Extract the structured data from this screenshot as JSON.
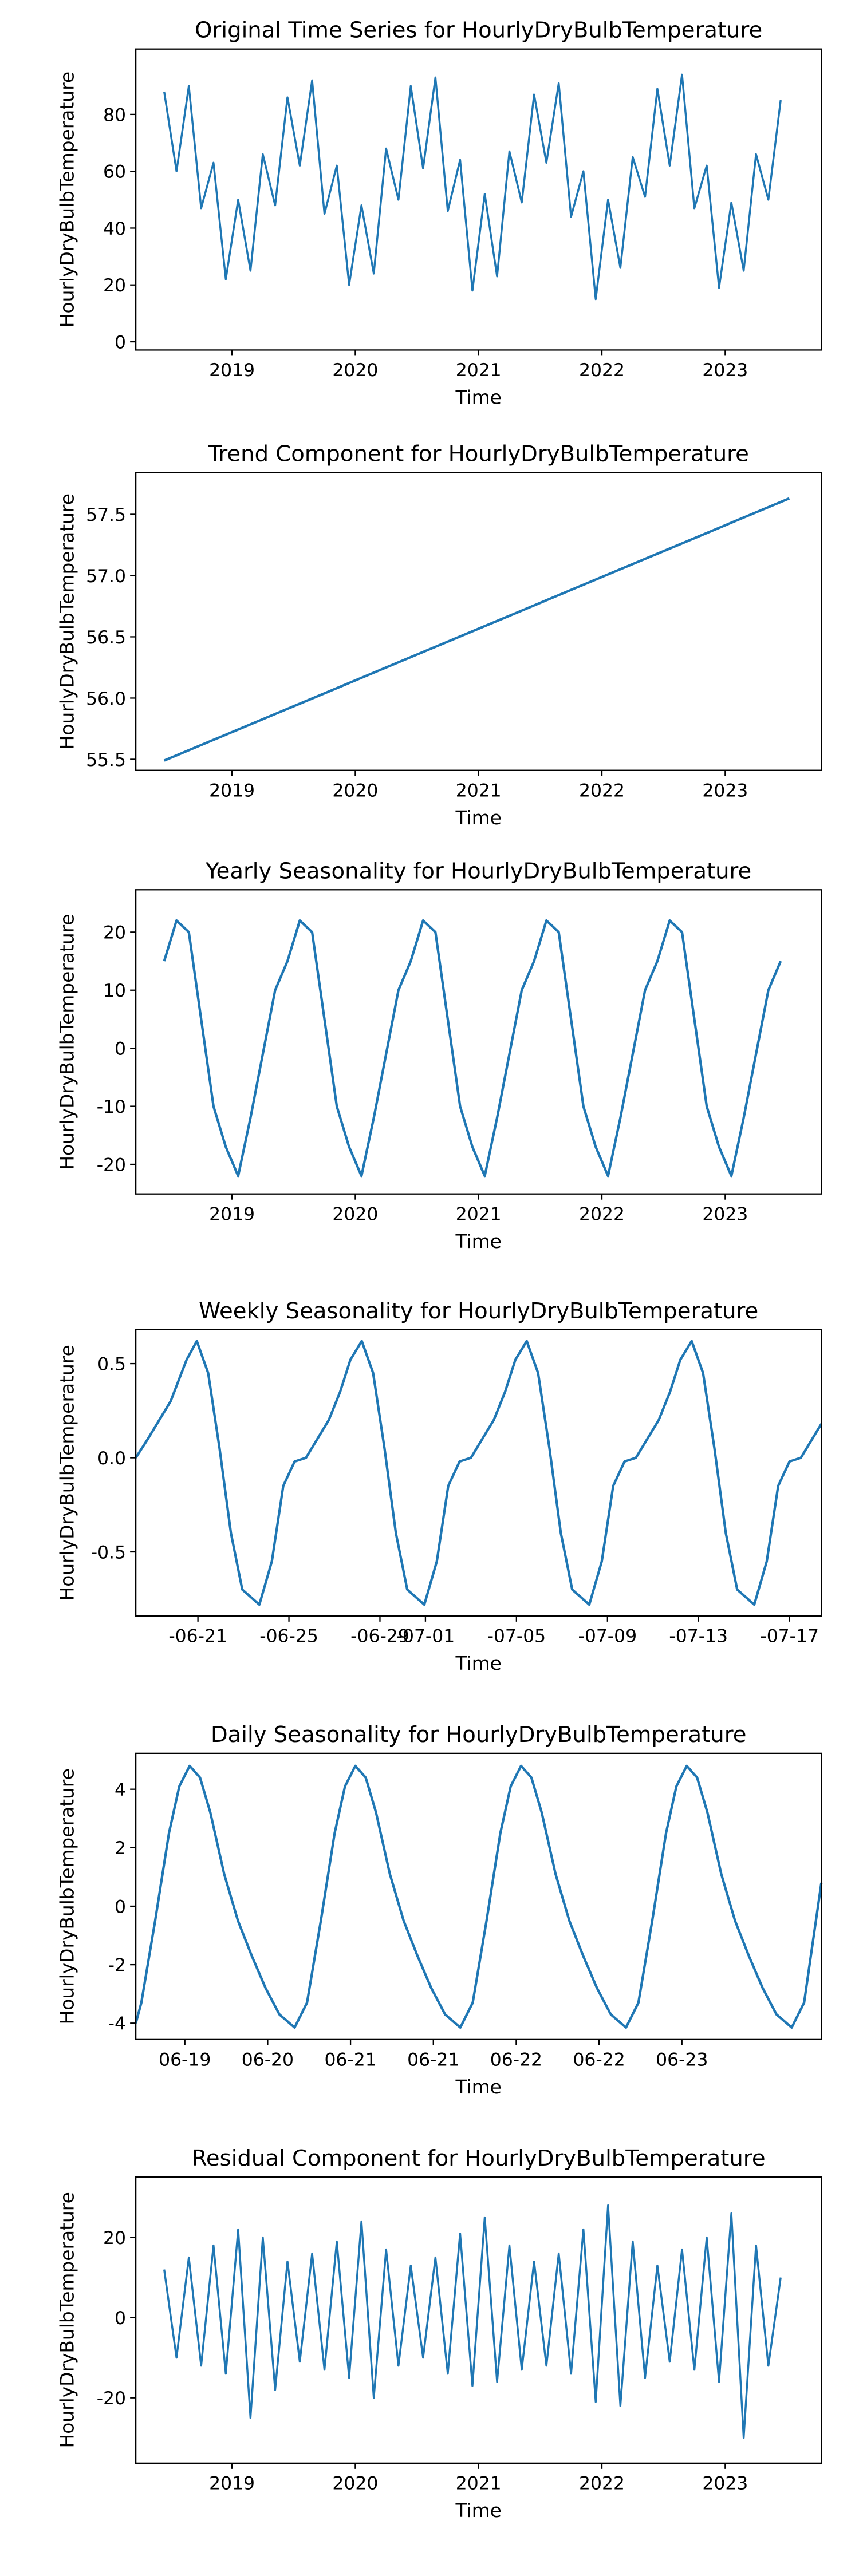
{
  "chart_data": [
    {
      "type": "line",
      "title": "Original Time Series for HourlyDryBulbTemperature",
      "xlabel": "Time",
      "ylabel": "HourlyDryBulbTemperature",
      "color": "#1f77b4",
      "x": [
        2018.45,
        2018.55,
        2018.65,
        2018.75,
        2018.85,
        2018.95,
        2019.05,
        2019.15,
        2019.25,
        2019.35,
        2019.45,
        2019.55,
        2019.65,
        2019.75,
        2019.85,
        2019.95,
        2020.05,
        2020.15,
        2020.25,
        2020.35,
        2020.45,
        2020.55,
        2020.65,
        2020.75,
        2020.85,
        2020.95,
        2021.05,
        2021.15,
        2021.25,
        2021.35,
        2021.45,
        2021.55,
        2021.65,
        2021.75,
        2021.85,
        2021.95,
        2022.05,
        2022.15,
        2022.25,
        2022.35,
        2022.45,
        2022.55,
        2022.65,
        2022.75,
        2022.85,
        2022.95,
        2023.05,
        2023.15,
        2023.25,
        2023.35,
        2023.45
      ],
      "values": [
        88,
        60,
        90,
        47,
        63,
        22,
        50,
        25,
        66,
        48,
        86,
        62,
        92,
        45,
        62,
        20,
        48,
        24,
        68,
        50,
        90,
        61,
        93,
        46,
        64,
        18,
        52,
        23,
        67,
        49,
        87,
        63,
        91,
        44,
        60,
        15,
        50,
        26,
        65,
        51,
        89,
        62,
        94,
        47,
        62,
        19,
        49,
        25,
        66,
        50,
        85
      ],
      "xlim": [
        2018.22,
        2023.78
      ],
      "xticks": [
        2019,
        2020,
        2021,
        2022,
        2023
      ],
      "ylim": [
        -2.9,
        103
      ],
      "yticks": [
        0,
        20,
        40,
        60,
        80
      ],
      "noisy": true
    },
    {
      "type": "line",
      "title": "Trend Component for HourlyDryBulbTemperature",
      "xlabel": "Time",
      "ylabel": "HourlyDryBulbTemperature",
      "color": "#1f77b4",
      "x": [
        2018.45,
        2023.52
      ],
      "values": [
        55.49,
        57.63
      ],
      "xlim": [
        2018.22,
        2023.78
      ],
      "xticks": [
        2019,
        2020,
        2021,
        2022,
        2023
      ],
      "ylim": [
        55.41,
        57.84
      ],
      "yticks": [
        55.5,
        {
          "value": 56,
          "label": "56.0"
        },
        56.5,
        {
          "value": 57,
          "label": "57.0"
        },
        57.5
      ]
    },
    {
      "type": "line",
      "title": "Yearly Seasonality for HourlyDryBulbTemperature",
      "xlabel": "Time",
      "ylabel": "HourlyDryBulbTemperature",
      "color": "#1f77b4",
      "x": [
        2018.45,
        2018.55,
        2018.65,
        2018.75,
        2018.85,
        2018.95,
        2019.05,
        2019.15,
        2019.25,
        2019.35,
        2019.45,
        2019.55,
        2019.65,
        2019.75,
        2019.85,
        2019.95,
        2020.05,
        2020.15,
        2020.25,
        2020.35,
        2020.45,
        2020.55,
        2020.65,
        2020.75,
        2020.85,
        2020.95,
        2021.05,
        2021.15,
        2021.25,
        2021.35,
        2021.45,
        2021.55,
        2021.65,
        2021.75,
        2021.85,
        2021.95,
        2022.05,
        2022.15,
        2022.25,
        2022.35,
        2022.45,
        2022.55,
        2022.65,
        2022.75,
        2022.85,
        2022.95,
        2023.05,
        2023.15,
        2023.25,
        2023.35,
        2023.45
      ],
      "values": [
        15,
        22,
        20,
        5,
        -10,
        -17,
        -22,
        -12,
        -1,
        10,
        15,
        22,
        20,
        5,
        -10,
        -17,
        -22,
        -12,
        -1,
        10,
        15,
        22,
        20,
        5,
        -10,
        -17,
        -22,
        -12,
        -1,
        10,
        15,
        22,
        20,
        5,
        -10,
        -17,
        -22,
        -12,
        -1,
        10,
        15,
        22,
        20,
        5,
        -10,
        -17,
        -22,
        -12,
        -1,
        10,
        15
      ],
      "xlim": [
        2018.22,
        2023.78
      ],
      "xticks": [
        2019,
        2020,
        2021,
        2022,
        2023
      ],
      "ylim": [
        -25.1,
        27.3
      ],
      "yticks": [
        -20,
        -10,
        0,
        10,
        20
      ]
    },
    {
      "type": "line",
      "title": "Weekly Seasonality for HourlyDryBulbTemperature",
      "xlabel": "Time",
      "ylabel": "HourlyDryBulbTemperature",
      "color": "#1f77b4",
      "x": [
        -2.73,
        -2.2,
        -1.7,
        -1.2,
        -0.5,
        -0.05,
        0.45,
        0.95,
        1.45,
        1.95,
        2.7,
        3.25,
        3.75,
        4.25,
        4.75,
        5.25,
        5.75,
        6.25,
        6.7,
        7.2,
        7.7,
        8.2,
        8.7,
        9.2,
        9.95,
        10.5,
        11,
        11.5,
        12,
        12.5,
        13,
        13.5,
        13.95,
        14.45,
        14.95,
        15.45,
        15.95,
        16.45,
        17.2,
        17.75,
        18.25,
        18.75,
        19.25,
        19.75,
        20.25,
        20.75,
        21.2,
        21.7,
        22.2,
        22.7,
        23.2,
        23.7,
        24.45,
        25,
        25.5,
        26,
        26.5,
        27,
        27.4
      ],
      "values": [
        0,
        0.1,
        0.2,
        0.3,
        0.52,
        0.62,
        0.45,
        0.05,
        -0.4,
        -0.7,
        -0.78,
        -0.55,
        -0.15,
        -0.02,
        0,
        0.1,
        0.2,
        0.35,
        0.52,
        0.62,
        0.45,
        0.05,
        -0.4,
        -0.7,
        -0.78,
        -0.55,
        -0.15,
        -0.02,
        0,
        0.1,
        0.2,
        0.35,
        0.52,
        0.62,
        0.45,
        0.05,
        -0.4,
        -0.7,
        -0.78,
        -0.55,
        -0.15,
        -0.02,
        0,
        0.1,
        0.2,
        0.35,
        0.52,
        0.62,
        0.45,
        0.05,
        -0.4,
        -0.7,
        -0.78,
        -0.55,
        -0.15,
        -0.02,
        0,
        0.1,
        0.18
      ],
      "xlim": [
        -2.73,
        27.4
      ],
      "xticks": [
        {
          "value": 0,
          "label": "-06-21"
        },
        {
          "value": 4,
          "label": "-06-25"
        },
        {
          "value": 8,
          "label": "-06-29"
        },
        {
          "value": 10,
          "label": "-07-01"
        },
        {
          "value": 14,
          "label": "-07-05"
        },
        {
          "value": 18,
          "label": "-07-09"
        },
        {
          "value": 22,
          "label": "-07-13"
        },
        {
          "value": 26,
          "label": "-07-17"
        }
      ],
      "ylim": [
        -0.84,
        0.68
      ],
      "yticks": [
        -0.5,
        {
          "value": 0,
          "label": "0.0"
        },
        0.5
      ]
    },
    {
      "type": "line",
      "title": "Daily Seasonality for HourlyDryBulbTemperature",
      "xlabel": "Time",
      "ylabel": "HourlyDryBulbTemperature",
      "color": "#1f77b4",
      "x": [
        -7.1,
        -6.3,
        -4.3,
        -2.3,
        -0.8,
        0.7,
        2.2,
        3.7,
        5.7,
        7.7,
        9.7,
        11.7,
        13.7,
        15.9,
        17.7,
        19.7,
        21.7,
        23.2,
        24.7,
        26.2,
        27.7,
        29.7,
        31.7,
        33.7,
        35.7,
        37.7,
        39.9,
        41.7,
        43.7,
        45.7,
        47.2,
        48.7,
        50.2,
        51.7,
        53.7,
        55.7,
        57.7,
        59.7,
        61.7,
        63.9,
        65.7,
        67.7,
        69.7,
        71.2,
        72.7,
        74.2,
        75.7,
        77.7,
        79.7,
        81.7,
        83.7,
        85.7,
        87.9,
        89.7,
        92.2
      ],
      "values": [
        -4,
        -3.3,
        -0.5,
        2.5,
        4.1,
        4.8,
        4.4,
        3.2,
        1.1,
        -0.5,
        -1.7,
        -2.8,
        -3.7,
        -4.15,
        -3.3,
        -0.5,
        2.5,
        4.1,
        4.8,
        4.4,
        3.2,
        1.1,
        -0.5,
        -1.7,
        -2.8,
        -3.7,
        -4.15,
        -3.3,
        -0.5,
        2.5,
        4.1,
        4.8,
        4.4,
        3.2,
        1.1,
        -0.5,
        -1.7,
        -2.8,
        -3.7,
        -4.15,
        -3.3,
        -0.5,
        2.5,
        4.1,
        4.8,
        4.4,
        3.2,
        1.1,
        -0.5,
        -1.7,
        -2.8,
        -3.7,
        -4.15,
        -3.3,
        0.8
      ],
      "xlim": [
        -7.1,
        92.2
      ],
      "xticks": [
        {
          "value": 0,
          "label": "06-19"
        },
        {
          "value": 12,
          "label": "06-20"
        },
        {
          "value": 24,
          "label": "06-21"
        },
        {
          "value": 36,
          "label": "06-21"
        },
        {
          "value": 48,
          "label": "06-22"
        },
        {
          "value": 60,
          "label": "06-22"
        },
        {
          "value": 72,
          "label": "06-23"
        }
      ],
      "ylim": [
        -4.56,
        5.23
      ],
      "yticks": [
        -4,
        -2,
        0,
        2,
        4
      ]
    },
    {
      "type": "line",
      "title": "Residual Component for HourlyDryBulbTemperature",
      "xlabel": "Time",
      "ylabel": "HourlyDryBulbTemperature",
      "color": "#1f77b4",
      "x": [
        2018.45,
        2018.55,
        2018.65,
        2018.75,
        2018.85,
        2018.95,
        2019.05,
        2019.15,
        2019.25,
        2019.35,
        2019.45,
        2019.55,
        2019.65,
        2019.75,
        2019.85,
        2019.95,
        2020.05,
        2020.15,
        2020.25,
        2020.35,
        2020.45,
        2020.55,
        2020.65,
        2020.75,
        2020.85,
        2020.95,
        2021.05,
        2021.15,
        2021.25,
        2021.35,
        2021.45,
        2021.55,
        2021.65,
        2021.75,
        2021.85,
        2021.95,
        2022.05,
        2022.15,
        2022.25,
        2022.35,
        2022.45,
        2022.55,
        2022.65,
        2022.75,
        2022.85,
        2022.95,
        2023.05,
        2023.15,
        2023.25,
        2023.35,
        2023.45
      ],
      "values": [
        12,
        -10,
        15,
        -12,
        18,
        -14,
        22,
        -25,
        20,
        -18,
        14,
        -11,
        16,
        -13,
        19,
        -15,
        24,
        -20,
        17,
        -12,
        13,
        -10,
        15,
        -14,
        21,
        -17,
        25,
        -16,
        18,
        -13,
        14,
        -12,
        16,
        -14,
        22,
        -21,
        28,
        -22,
        19,
        -15,
        13,
        -11,
        17,
        -13,
        20,
        -16,
        26,
        -30,
        18,
        -12,
        10
      ],
      "xlim": [
        2018.22,
        2023.78
      ],
      "xticks": [
        2019,
        2020,
        2021,
        2022,
        2023
      ],
      "ylim": [
        -36.3,
        35.1
      ],
      "yticks": [
        -20,
        0,
        20
      ],
      "noisy": true
    }
  ]
}
